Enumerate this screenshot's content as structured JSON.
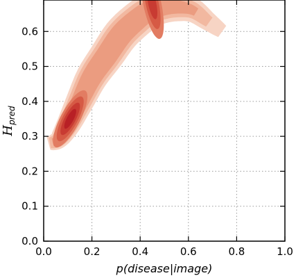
{
  "chart_data": {
    "type": "contour",
    "xlabel": "p(disease|image)",
    "ylabel_main": "H",
    "ylabel_sub": "pred",
    "xlim": [
      0.0,
      1.0
    ],
    "ylim": [
      0.0,
      0.69
    ],
    "x_ticks": [
      0.0,
      0.2,
      0.4,
      0.6,
      0.8,
      1.0
    ],
    "x_tick_labels": [
      "0.0",
      "0.2",
      "0.4",
      "0.6",
      "0.8",
      "1.0"
    ],
    "y_ticks": [
      0.0,
      0.1,
      0.2,
      0.3,
      0.4,
      0.5,
      0.6
    ],
    "y_tick_labels": [
      "0.0",
      "0.1",
      "0.2",
      "0.3",
      "0.4",
      "0.5",
      "0.6"
    ],
    "grid": true,
    "grid_style": "dotted",
    "density_ridge": {
      "x": [
        0.02,
        0.06,
        0.1,
        0.15,
        0.2,
        0.26,
        0.32,
        0.38,
        0.44,
        0.5,
        0.56,
        0.62,
        0.68,
        0.74
      ],
      "y": [
        0.28,
        0.29,
        0.33,
        0.4,
        0.47,
        0.53,
        0.59,
        0.63,
        0.66,
        0.67,
        0.67,
        0.66,
        0.63,
        0.6
      ]
    },
    "density_peaks": [
      {
        "x": 0.11,
        "y": 0.35,
        "weight": 1.0
      },
      {
        "x": 0.45,
        "y": 0.68,
        "weight": 0.75
      }
    ],
    "colors": {
      "levels": [
        "#f7d4c4",
        "#f2b8a0",
        "#eb9c80",
        "#e27c62",
        "#d65a45",
        "#c83b32",
        "#b82025"
      ]
    }
  }
}
